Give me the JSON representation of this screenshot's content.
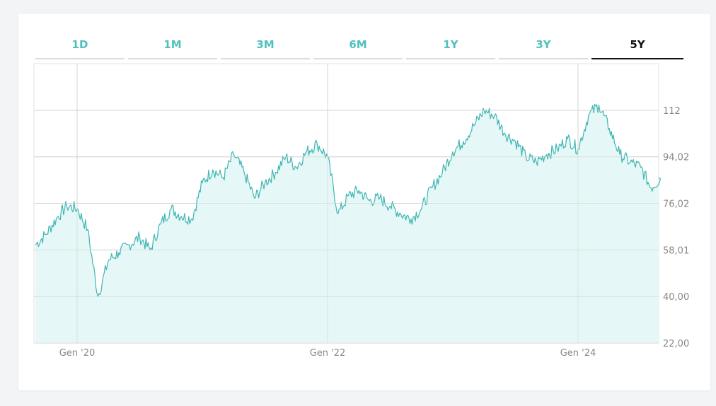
{
  "tabs": {
    "t1": {
      "label": "1D"
    },
    "t2": {
      "label": "1M"
    },
    "t3": {
      "label": "3M"
    },
    "t4": {
      "label": "6M"
    },
    "t5": {
      "label": "1Y"
    },
    "t6": {
      "label": "3Y"
    },
    "t7": {
      "label": "5Y"
    },
    "active": "5Y"
  },
  "colors": {
    "line": "#3fb6b2",
    "fill": "#e6f7f7",
    "grid": "#d6d6d6",
    "active_tab": "#111111",
    "tab": "#4fc0bd"
  },
  "chart_data": {
    "type": "area",
    "title": "",
    "xlabel": "",
    "ylabel": "",
    "ylim": [
      22.0,
      130
    ],
    "y_ticks": [
      "112",
      "94,02",
      "76,02",
      "58,01",
      "40,00",
      "22,00"
    ],
    "y_tick_values": [
      112,
      94.02,
      76.02,
      58.01,
      40.0,
      22.0
    ],
    "x_ticks": [
      "Gen '20",
      "Gen '22",
      "Gen '24"
    ],
    "x_tick_dates": [
      "2020-01",
      "2022-01",
      "2024-01"
    ],
    "grid": true,
    "series": [
      {
        "x": [
          "2019-09",
          "2019-10",
          "2019-11",
          "2019-12",
          "2020-01",
          "2020-02",
          "2020-03",
          "2020-04",
          "2020-05",
          "2020-06",
          "2020-07",
          "2020-08",
          "2020-09",
          "2020-10",
          "2020-11",
          "2020-12",
          "2021-01",
          "2021-02",
          "2021-03",
          "2021-04",
          "2021-05",
          "2021-06",
          "2021-07",
          "2021-08",
          "2021-09",
          "2021-10",
          "2021-11",
          "2021-12",
          "2022-01",
          "2022-02",
          "2022-03",
          "2022-04",
          "2022-05",
          "2022-06",
          "2022-07",
          "2022-08",
          "2022-09",
          "2022-10",
          "2022-11",
          "2022-12",
          "2023-01",
          "2023-02",
          "2023-03",
          "2023-04",
          "2023-05",
          "2023-06",
          "2023-07",
          "2023-08",
          "2023-09",
          "2023-10",
          "2023-11",
          "2023-12",
          "2024-01",
          "2024-02",
          "2024-03",
          "2024-04",
          "2024-05",
          "2024-06",
          "2024-07",
          "2024-08",
          "2024-09"
        ],
        "values": [
          60,
          64,
          70,
          75,
          74,
          66,
          40,
          54,
          57,
          60,
          63,
          58,
          68,
          74,
          71,
          70,
          84,
          89,
          86,
          95,
          88,
          78,
          84,
          88,
          94,
          90,
          96,
          99,
          94,
          72,
          79,
          81,
          77,
          78,
          75,
          72,
          70,
          74,
          82,
          88,
          96,
          100,
          106,
          112,
          110,
          103,
          100,
          94,
          92,
          95,
          97,
          101,
          97,
          110,
          114,
          105,
          95,
          92,
          90,
          82,
          86
        ]
      }
    ]
  }
}
